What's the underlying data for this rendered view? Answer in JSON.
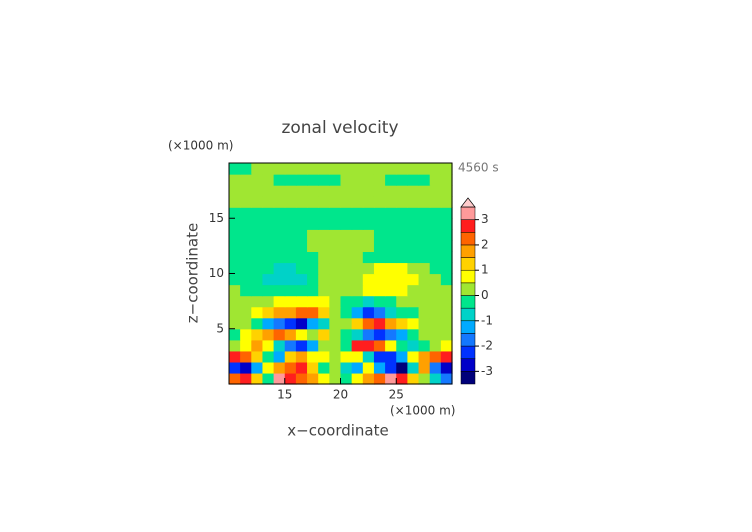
{
  "chart_data": {
    "type": "contour",
    "title": "zonal velocity",
    "x_label": "x−coordinate",
    "y_label": "z−coordinate",
    "x_unit": "(×1000 m)",
    "y_unit": "(×1000 m)",
    "time_label": "4560 s",
    "xlim": [
      10,
      30
    ],
    "ylim": [
      0,
      20
    ],
    "xticks": [
      15,
      20,
      25
    ],
    "yticks": [
      5,
      10,
      15
    ],
    "x": [
      10.5,
      11.5,
      12.5,
      13.5,
      14.5,
      15.5,
      16.5,
      17.5,
      18.5,
      19.5,
      20.5,
      21.5,
      22.5,
      23.5,
      24.5,
      25.5,
      26.5,
      27.5,
      28.5,
      29.5
    ],
    "y": [
      0.5,
      1.5,
      2.5,
      3.5,
      4.5,
      5.5,
      6.5,
      7.5,
      8.5,
      9.5,
      10.5,
      11.5,
      12.5,
      13.5,
      14.5,
      15.5,
      16.5,
      17.5,
      18.5,
      19.5
    ],
    "z": [
      [
        2.2,
        2.5,
        1.2,
        -0.5,
        3.2,
        2.8,
        2.2,
        1.5,
        0.5,
        0.2,
        -0.3,
        0.8,
        1.5,
        2.2,
        3.2,
        2.8,
        1.2,
        0.3,
        -1.0,
        -1.8
      ],
      [
        -2.5,
        -2.8,
        -1.5,
        0.5,
        1.5,
        2.0,
        2.8,
        1.2,
        -0.5,
        0.3,
        -0.6,
        -1.2,
        0.5,
        -1.5,
        -2.2,
        -3.2,
        -1.0,
        1.5,
        -2.0,
        -2.8
      ],
      [
        2.5,
        2.2,
        1.2,
        -0.5,
        -1.2,
        1.2,
        1.6,
        0.8,
        0.6,
        0.3,
        0.5,
        0.8,
        -0.8,
        -2.2,
        -2.5,
        -1.5,
        0.8,
        1.8,
        2.2,
        2.6
      ],
      [
        0.3,
        0.8,
        1.5,
        0.5,
        -1.0,
        -2.0,
        -2.2,
        -1.2,
        0.2,
        0.4,
        -0.3,
        2.5,
        2.8,
        2.2,
        0.8,
        -0.3,
        -0.8,
        -0.5,
        0.2,
        0.5
      ],
      [
        -0.3,
        0.5,
        1.2,
        1.8,
        2.0,
        1.5,
        0.8,
        0.4,
        1.0,
        0.2,
        -0.2,
        -0.8,
        -1.6,
        -2.2,
        -1.8,
        -1.2,
        -0.4,
        0.2,
        0.3,
        0.2
      ],
      [
        0.3,
        0.2,
        -0.3,
        -1.2,
        -1.8,
        -2.2,
        -2.8,
        -1.5,
        -0.6,
        0.2,
        0.3,
        1.2,
        2.2,
        2.6,
        1.8,
        1.2,
        0.6,
        0.3,
        0.2,
        0.2
      ],
      [
        0.2,
        0.3,
        0.6,
        1.2,
        1.5,
        1.6,
        2.0,
        2.4,
        1.2,
        0.3,
        -0.3,
        -1.5,
        -2.2,
        -1.6,
        -1.0,
        -0.5,
        -0.2,
        0.2,
        0.2,
        0.2
      ],
      [
        0.2,
        0.2,
        0.3,
        0.4,
        0.5,
        0.6,
        0.6,
        0.7,
        0.5,
        0.2,
        -0.2,
        -0.4,
        -0.6,
        -0.4,
        -0.2,
        0.2,
        0.3,
        0.2,
        0.2,
        0.2
      ],
      [
        0.2,
        -0.2,
        -0.3,
        -0.3,
        -0.4,
        -0.5,
        -0.4,
        -0.3,
        0.2,
        0.3,
        0.3,
        0.4,
        0.6,
        0.7,
        0.6,
        0.5,
        0.3,
        0.2,
        0.2,
        0.2
      ],
      [
        -0.2,
        -0.2,
        -0.3,
        -0.6,
        -0.8,
        -0.8,
        -0.7,
        -0.4,
        0.2,
        0.3,
        0.3,
        0.4,
        0.7,
        0.8,
        0.8,
        0.7,
        0.6,
        0.3,
        0.2,
        -0.2
      ],
      [
        -0.2,
        -0.2,
        -0.3,
        -0.4,
        -0.6,
        -0.6,
        -0.4,
        -0.2,
        0.2,
        0.2,
        0.2,
        0.3,
        0.4,
        0.6,
        0.7,
        0.6,
        0.4,
        0.2,
        -0.2,
        -0.2
      ],
      [
        -0.2,
        -0.2,
        -0.2,
        -0.2,
        -0.2,
        -0.2,
        -0.2,
        -0.2,
        0.2,
        0.2,
        0.2,
        0.2,
        -0.2,
        -0.2,
        -0.2,
        -0.2,
        -0.2,
        -0.2,
        -0.2,
        -0.2
      ],
      [
        -0.2,
        -0.2,
        -0.2,
        -0.2,
        -0.2,
        -0.2,
        -0.2,
        0.2,
        0.2,
        0.2,
        0.2,
        0.2,
        0.2,
        -0.2,
        -0.2,
        -0.2,
        -0.2,
        -0.2,
        -0.2,
        -0.2
      ],
      [
        -0.2,
        -0.2,
        -0.2,
        -0.2,
        -0.2,
        -0.2,
        -0.2,
        0.2,
        0.2,
        0.2,
        0.2,
        0.2,
        0.2,
        -0.2,
        -0.2,
        -0.2,
        -0.2,
        -0.2,
        -0.2,
        -0.2
      ],
      [
        -0.2,
        -0.2,
        -0.2,
        -0.2,
        -0.2,
        -0.2,
        -0.2,
        -0.2,
        -0.2,
        -0.2,
        -0.2,
        -0.2,
        -0.2,
        -0.2,
        -0.2,
        -0.2,
        -0.2,
        -0.2,
        -0.2,
        -0.2
      ],
      [
        -0.2,
        -0.2,
        -0.2,
        -0.2,
        -0.2,
        -0.2,
        -0.2,
        -0.2,
        -0.2,
        -0.2,
        -0.2,
        -0.2,
        -0.2,
        -0.2,
        -0.2,
        -0.2,
        -0.2,
        -0.2,
        -0.2,
        -0.2
      ],
      [
        0.2,
        0.2,
        0.2,
        0.2,
        0.2,
        0.2,
        0.2,
        0.2,
        0.2,
        0.2,
        0.2,
        0.2,
        0.2,
        0.2,
        0.2,
        0.2,
        0.2,
        0.2,
        0.2,
        0.2
      ],
      [
        0.2,
        0.2,
        0.2,
        0.2,
        0.2,
        0.2,
        0.2,
        0.2,
        0.2,
        0.2,
        0.2,
        0.2,
        0.2,
        0.2,
        0.2,
        0.2,
        0.2,
        0.2,
        0.2,
        0.2
      ],
      [
        0.2,
        0.2,
        0.2,
        0.2,
        -0.2,
        -0.2,
        -0.2,
        -0.2,
        -0.2,
        -0.2,
        0.2,
        0.2,
        0.2,
        0.2,
        -0.2,
        -0.2,
        -0.2,
        -0.2,
        0.2,
        0.2
      ],
      [
        -0.2,
        -0.2,
        0.2,
        0.2,
        0.2,
        0.2,
        0.2,
        0.2,
        0.2,
        0.2,
        0.2,
        0.2,
        0.2,
        0.2,
        0.2,
        0.2,
        0.2,
        0.2,
        0.2,
        0.2
      ]
    ],
    "colorbar": {
      "lim": [
        -3.5,
        3.5
      ],
      "levels": [
        -3.5,
        -3,
        -2.5,
        -2,
        -1.5,
        -1,
        -0.5,
        0,
        0.5,
        1,
        1.5,
        2,
        2.5,
        3,
        3.5
      ],
      "colors": [
        "#00007a",
        "#0000c8",
        "#0032ff",
        "#1478ff",
        "#00aaff",
        "#00d2c8",
        "#00e68c",
        "#a0e632",
        "#ffff00",
        "#ffd200",
        "#ffa000",
        "#ff6400",
        "#ff1e1e",
        "#ff9a9a"
      ],
      "extend_color": "#ffcccc",
      "ticks": [
        -3,
        -2,
        -1,
        0,
        1,
        2,
        3
      ]
    }
  }
}
